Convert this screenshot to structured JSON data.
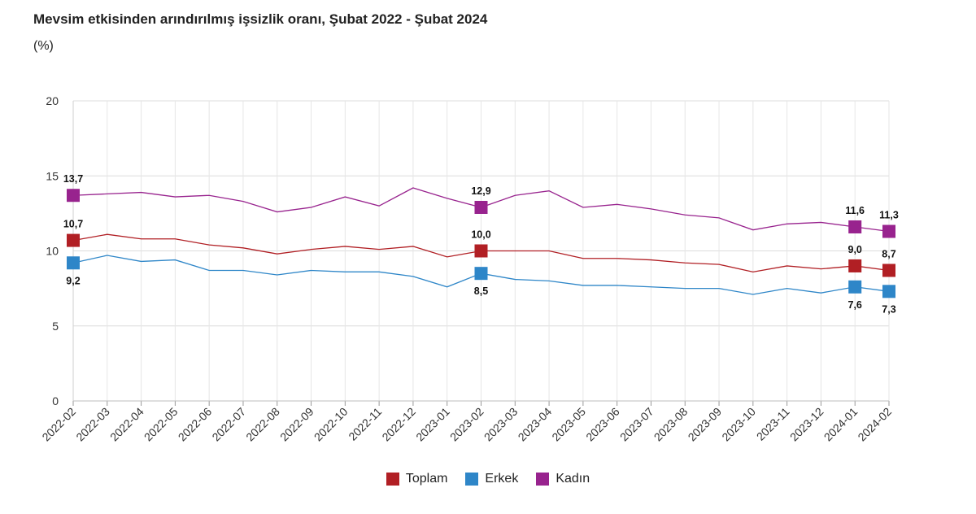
{
  "header": {
    "title": "Mevsim etkisinden arındırılmış işsizlik oranı, Şubat 2022 - Şubat 2024",
    "subtitle": "(%)"
  },
  "chart_data": {
    "type": "line",
    "title": "Mevsim etkisinden arındırılmış işsizlik oranı, Şubat 2022 - Şubat 2024",
    "ylabel": "(%)",
    "xlabel": "",
    "ylim": [
      0,
      20
    ],
    "yticks": [
      0,
      5,
      10,
      15,
      20
    ],
    "grid": true,
    "legend_position": "bottom",
    "categories": [
      "2022-02",
      "2022-03",
      "2022-04",
      "2022-05",
      "2022-06",
      "2022-07",
      "2022-08",
      "2022-09",
      "2022-10",
      "2022-11",
      "2022-12",
      "2023-01",
      "2023-02",
      "2023-03",
      "2023-04",
      "2023-05",
      "2023-06",
      "2023-07",
      "2023-08",
      "2023-09",
      "2023-10",
      "2023-11",
      "2023-12",
      "2024-01",
      "2024-02"
    ],
    "series": [
      {
        "name": "Toplam",
        "color": "#b11f24",
        "values": [
          10.7,
          11.1,
          10.8,
          10.8,
          10.4,
          10.2,
          9.8,
          10.1,
          10.3,
          10.1,
          10.3,
          9.6,
          10.0,
          10.0,
          10.0,
          9.5,
          9.5,
          9.4,
          9.2,
          9.1,
          8.6,
          9.0,
          8.8,
          9.0,
          8.7
        ],
        "markers": [
          0,
          12,
          23,
          24
        ],
        "marker_labels": {
          "0": "10,7",
          "12": "10,0",
          "23": "9,0",
          "24": "8,7"
        },
        "label_pos": "above"
      },
      {
        "name": "Erkek",
        "color": "#2e86c8",
        "values": [
          9.2,
          9.7,
          9.3,
          9.4,
          8.7,
          8.7,
          8.4,
          8.7,
          8.6,
          8.6,
          8.3,
          7.6,
          8.5,
          8.1,
          8.0,
          7.7,
          7.7,
          7.6,
          7.5,
          7.5,
          7.1,
          7.5,
          7.2,
          7.6,
          7.3
        ],
        "markers": [
          0,
          12,
          23,
          24
        ],
        "marker_labels": {
          "0": "9,2",
          "12": "8,5",
          "23": "7,6",
          "24": "7,3"
        },
        "label_pos": "below"
      },
      {
        "name": "Kadın",
        "color": "#98238e",
        "values": [
          13.7,
          13.8,
          13.9,
          13.6,
          13.7,
          13.3,
          12.6,
          12.9,
          13.6,
          13.0,
          14.2,
          13.5,
          12.9,
          13.7,
          14.0,
          12.9,
          13.1,
          12.8,
          12.4,
          12.2,
          11.4,
          11.8,
          11.9,
          11.6,
          11.3
        ],
        "markers": [
          0,
          12,
          23,
          24
        ],
        "marker_labels": {
          "0": "13,7",
          "12": "12,9",
          "23": "11,6",
          "24": "11,3"
        },
        "label_pos": "above"
      }
    ]
  }
}
